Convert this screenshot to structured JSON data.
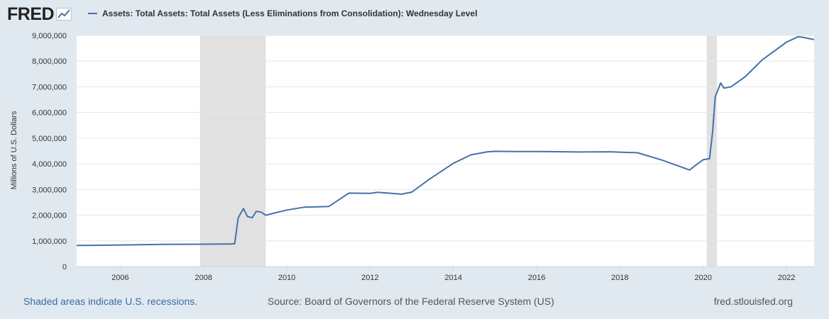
{
  "logo": {
    "text": "FRED",
    "icon": "chart-line-icon"
  },
  "footer": {
    "recessions_note": "Shaded areas indicate U.S. recessions.",
    "source": "Source: Board of Governors of the Federal Reserve System (US)",
    "site": "fred.stlouisfed.org"
  },
  "colors": {
    "series": "#4572a7",
    "recession": "#e1e1e1",
    "page_bg": "#e1e9f0",
    "grid": "#e6e6e6"
  },
  "chart_data": {
    "type": "line",
    "title": "",
    "xlabel": "",
    "ylabel": "Millions of U.S. Dollars",
    "xlim": [
      "2004-12-15",
      "2022-08-31"
    ],
    "ylim": [
      0,
      9000000
    ],
    "x_ticks": [
      "2006",
      "2008",
      "2010",
      "2012",
      "2014",
      "2016",
      "2018",
      "2020",
      "2022"
    ],
    "y_ticks": [
      "0",
      "1,000,000",
      "2,000,000",
      "3,000,000",
      "4,000,000",
      "5,000,000",
      "6,000,000",
      "7,000,000",
      "8,000,000",
      "9,000,000"
    ],
    "grid": true,
    "legend_position": "top-left",
    "recessions": [
      {
        "start": "2007-12-01",
        "end": "2009-06-30"
      },
      {
        "start": "2020-02-01",
        "end": "2020-04-30"
      }
    ],
    "series": [
      {
        "name": "Assets: Total Assets: Total Assets (Less Eliminations from Consolidation): Wednesday Level",
        "x": [
          "2004-12-15",
          "2006-01-01",
          "2007-01-01",
          "2007-12-01",
          "2008-09-03",
          "2008-10-01",
          "2008-11-01",
          "2008-12-17",
          "2009-01-21",
          "2009-03-04",
          "2009-04-08",
          "2009-05-20",
          "2009-07-01",
          "2009-10-01",
          "2010-01-01",
          "2010-06-01",
          "2010-11-01",
          "2011-01-05",
          "2011-06-29",
          "2012-01-04",
          "2012-03-07",
          "2012-06-06",
          "2012-10-03",
          "2013-01-02",
          "2013-06-05",
          "2014-01-01",
          "2014-06-04",
          "2014-10-29",
          "2015-01-07",
          "2015-06-03",
          "2016-01-06",
          "2017-01-04",
          "2017-10-04",
          "2018-06-06",
          "2019-01-02",
          "2019-09-04",
          "2019-11-06",
          "2020-01-01",
          "2020-02-26",
          "2020-03-25",
          "2020-04-15",
          "2020-06-03",
          "2020-07-01",
          "2020-09-02",
          "2021-01-06",
          "2021-06-02",
          "2022-01-05",
          "2022-04-13",
          "2022-06-01",
          "2022-08-31"
        ],
        "y": [
          820000,
          840000,
          860000,
          870000,
          880000,
          890000,
          1900000,
          2260000,
          1950000,
          1900000,
          2150000,
          2120000,
          2000000,
          2100000,
          2200000,
          2310000,
          2330000,
          2340000,
          2860000,
          2850000,
          2890000,
          2860000,
          2820000,
          2900000,
          3400000,
          4020000,
          4350000,
          4470000,
          4490000,
          4480000,
          4480000,
          4460000,
          4470000,
          4430000,
          4150000,
          3760000,
          3980000,
          4160000,
          4200000,
          5300000,
          6600000,
          7150000,
          6950000,
          7000000,
          7400000,
          8050000,
          8750000,
          8950000,
          8920000,
          8840000
        ]
      }
    ]
  }
}
